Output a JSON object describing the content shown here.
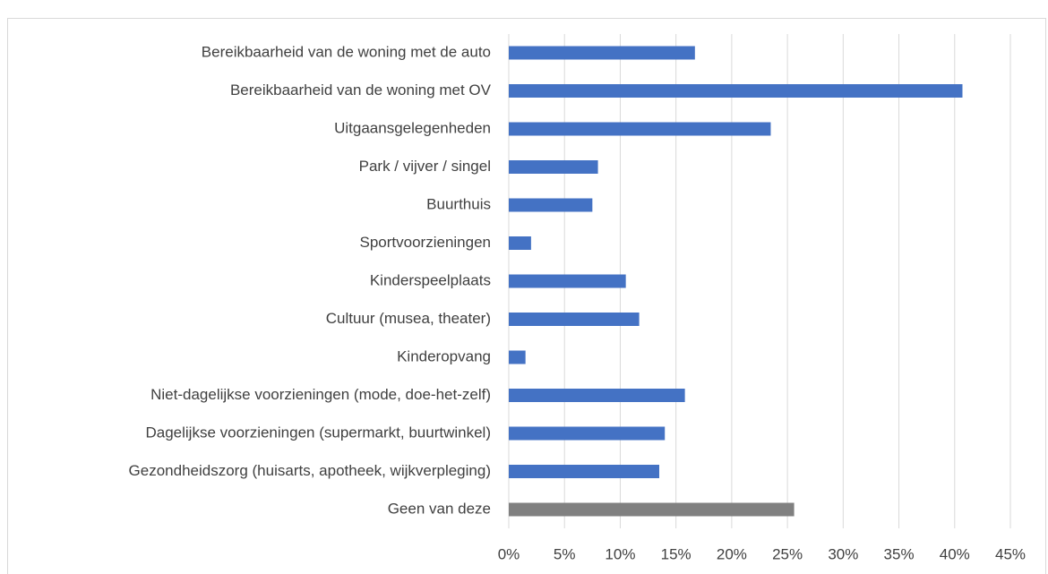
{
  "chart_data": {
    "type": "barh",
    "categories": [
      "Bereikbaarheid van de woning met de auto",
      "Bereikbaarheid van de woning met OV",
      "Uitgaansgelegenheden",
      "Park / vijver / singel",
      "Buurthuis",
      "Sportvoorzieningen",
      "Kinderspeelplaats",
      "Cultuur (musea, theater)",
      "Kinderopvang",
      "Niet-dagelijkse voorzieningen (mode, doe-het-zelf)",
      "Dagelijkse voorzieningen (supermarkt, buurtwinkel)",
      "Gezondheidszorg (huisarts, apotheek, wijkverpleging)",
      "Geen van deze"
    ],
    "values": [
      16.7,
      40.7,
      23.5,
      8.0,
      7.5,
      2.0,
      10.5,
      11.7,
      1.5,
      15.8,
      14.0,
      13.5,
      25.6
    ],
    "colors": [
      "#4472c4",
      "#4472c4",
      "#4472c4",
      "#4472c4",
      "#4472c4",
      "#4472c4",
      "#4472c4",
      "#4472c4",
      "#4472c4",
      "#4472c4",
      "#4472c4",
      "#4472c4",
      "#808080"
    ],
    "xlim": [
      0,
      45
    ],
    "xticks": [
      {
        "value": 0,
        "label": "0%"
      },
      {
        "value": 5,
        "label": "5%"
      },
      {
        "value": 10,
        "label": "10%"
      },
      {
        "value": 15,
        "label": "15%"
      },
      {
        "value": 20,
        "label": "20%"
      },
      {
        "value": 25,
        "label": "25%"
      },
      {
        "value": 30,
        "label": "30%"
      },
      {
        "value": 35,
        "label": "35%"
      },
      {
        "value": 40,
        "label": "40%"
      },
      {
        "value": 45,
        "label": "45%"
      }
    ],
    "grid": true
  }
}
